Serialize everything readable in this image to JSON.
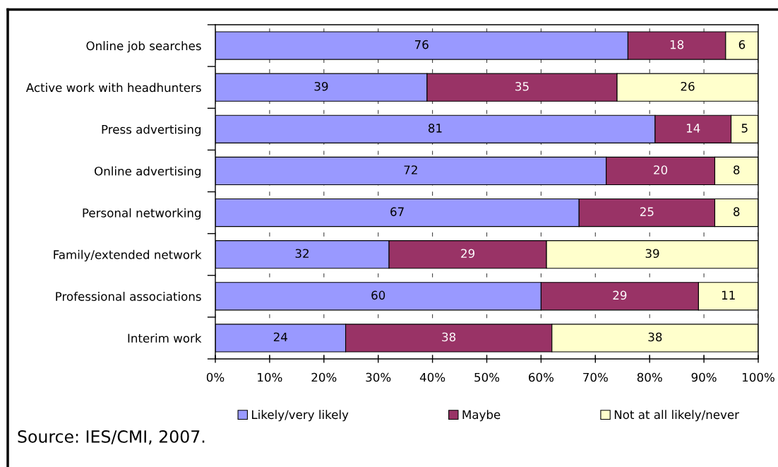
{
  "chart_data": {
    "type": "bar",
    "orientation": "horizontal",
    "stacked": true,
    "categories": [
      "Online job searches",
      "Active work with headhunters",
      "Press advertising",
      "Online advertising",
      "Personal networking",
      "Family/extended network",
      "Professional associations",
      "Interim work"
    ],
    "series": [
      {
        "name": "Likely/very likely",
        "color": "#9999ff",
        "values": [
          76,
          39,
          81,
          72,
          67,
          32,
          60,
          24
        ]
      },
      {
        "name": "Maybe",
        "color": "#993366",
        "values": [
          18,
          35,
          14,
          20,
          25,
          29,
          29,
          38
        ]
      },
      {
        "name": "Not at all likely/never",
        "color": "#ffffcc",
        "values": [
          6,
          26,
          5,
          8,
          8,
          39,
          11,
          38
        ]
      }
    ],
    "xlim": [
      0,
      100
    ],
    "xticks": [
      {
        "value": 0,
        "label": "0%"
      },
      {
        "value": 10,
        "label": "10%"
      },
      {
        "value": 20,
        "label": "20%"
      },
      {
        "value": 30,
        "label": "30%"
      },
      {
        "value": 40,
        "label": "40%"
      },
      {
        "value": 50,
        "label": "50%"
      },
      {
        "value": 60,
        "label": "60%"
      },
      {
        "value": 70,
        "label": "70%"
      },
      {
        "value": 80,
        "label": "80%"
      },
      {
        "value": 90,
        "label": "90%"
      },
      {
        "value": 100,
        "label": "100%"
      }
    ],
    "data_labels": true,
    "grid": "x",
    "legend": "bottom",
    "annotations": [
      "Source: IES/CMI, 2007."
    ]
  }
}
